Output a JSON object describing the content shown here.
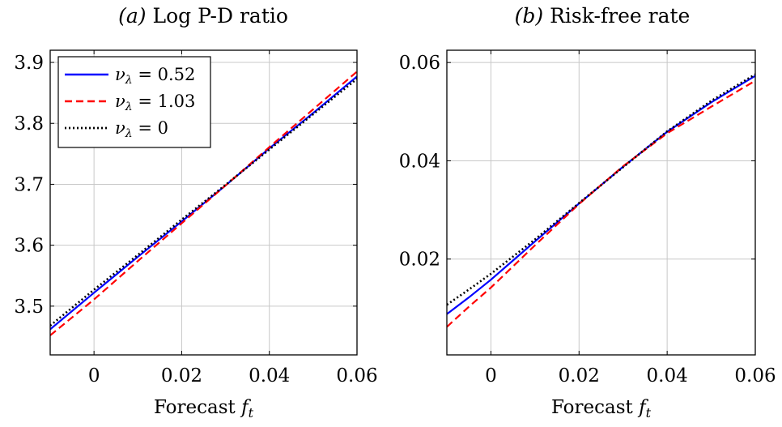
{
  "chart_data": [
    {
      "type": "line",
      "panel": "(a)",
      "title_label": "(a)",
      "title": "Log P-D ratio",
      "xlabel_text": "Forecast",
      "xlabel_var": "f",
      "xlabel_sub": "t",
      "ylabel": "",
      "xlim": [
        -0.01,
        0.06
      ],
      "ylim": [
        3.42,
        3.92
      ],
      "xticks": [
        0,
        0.02,
        0.04,
        0.06
      ],
      "xtick_labels": [
        "0",
        "0.02",
        "0.04",
        "0.06"
      ],
      "yticks": [
        3.5,
        3.6,
        3.7,
        3.8,
        3.9
      ],
      "ytick_labels": [
        "3.5",
        "3.6",
        "3.7",
        "3.8",
        "3.9"
      ],
      "grid": true,
      "legend_position": "top-left",
      "series": [
        {
          "name_sym": "ν",
          "name_sub": "λ",
          "name_val": "= 0.52",
          "color": "#0000ff",
          "dash": "solid",
          "x": [
            -0.01,
            0.0,
            0.01,
            0.02,
            0.03,
            0.04,
            0.05,
            0.06
          ],
          "y": [
            3.462,
            3.522,
            3.581,
            3.639,
            3.698,
            3.759,
            3.817,
            3.877
          ]
        },
        {
          "name_sym": "ν",
          "name_sub": "λ",
          "name_val": "= 1.03",
          "color": "#ff0000",
          "dash": "dashed",
          "x": [
            -0.01,
            0.0,
            0.01,
            0.02,
            0.03,
            0.04,
            0.05,
            0.06
          ],
          "y": [
            3.452,
            3.511,
            3.574,
            3.636,
            3.698,
            3.761,
            3.823,
            3.885
          ]
        },
        {
          "name_sym": "ν",
          "name_sub": "λ",
          "name_val": "= 0",
          "color": "#000000",
          "dash": "dotted",
          "x": [
            -0.01,
            0.0,
            0.01,
            0.02,
            0.03,
            0.04,
            0.05,
            0.06
          ],
          "y": [
            3.468,
            3.527,
            3.584,
            3.642,
            3.699,
            3.757,
            3.815,
            3.873
          ]
        }
      ]
    },
    {
      "type": "line",
      "panel": "(b)",
      "title_label": "(b)",
      "title": "Risk-free rate",
      "xlabel_text": "Forecast",
      "xlabel_var": "f",
      "xlabel_sub": "t",
      "ylabel": "",
      "xlim": [
        -0.01,
        0.06
      ],
      "ylim": [
        0.0005,
        0.0625
      ],
      "xticks": [
        0,
        0.02,
        0.04,
        0.06
      ],
      "xtick_labels": [
        "0",
        "0.02",
        "0.04",
        "0.06"
      ],
      "yticks": [
        0.02,
        0.04,
        0.06
      ],
      "ytick_labels": [
        "0.02",
        "0.04",
        "0.06"
      ],
      "grid": true,
      "series": [
        {
          "name_sym": "ν",
          "name_sub": "λ",
          "name_val": "= 0.52",
          "color": "#0000ff",
          "dash": "solid",
          "x": [
            -0.01,
            -0.005,
            0.0,
            0.01,
            0.02,
            0.03,
            0.04,
            0.05,
            0.06
          ],
          "y": [
            0.0088,
            0.0122,
            0.0158,
            0.0236,
            0.0313,
            0.0388,
            0.0459,
            0.0519,
            0.0573
          ]
        },
        {
          "name_sym": "ν",
          "name_sub": "λ",
          "name_val": "= 1.03",
          "color": "#ff0000",
          "dash": "dashed",
          "x": [
            -0.01,
            -0.005,
            0.0,
            0.01,
            0.02,
            0.03,
            0.04,
            0.05,
            0.06
          ],
          "y": [
            0.0062,
            0.0103,
            0.0142,
            0.0228,
            0.0312,
            0.0389,
            0.0456,
            0.051,
            0.0563
          ]
        },
        {
          "name_sym": "ν",
          "name_sub": "λ",
          "name_val": "= 0",
          "color": "#000000",
          "dash": "dotted",
          "x": [
            -0.01,
            -0.005,
            0.0,
            0.01,
            0.02,
            0.03,
            0.04,
            0.05,
            0.06
          ],
          "y": [
            0.0107,
            0.0138,
            0.017,
            0.024,
            0.0314,
            0.0387,
            0.046,
            0.0522,
            0.0576
          ]
        }
      ]
    }
  ]
}
